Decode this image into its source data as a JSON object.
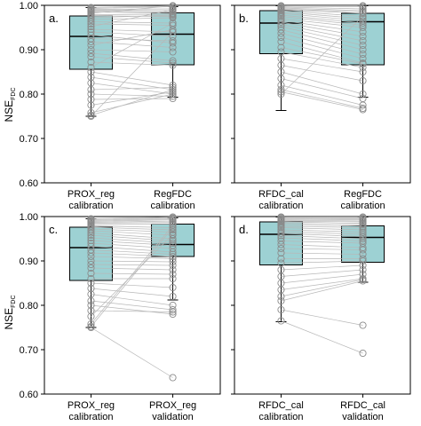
{
  "figure": {
    "ylabel_main": "NSE",
    "ylabel_sub": "FDC",
    "box_color": "#9dd1d3",
    "point_color": "#8a8a8a",
    "line_color": "#b8b8b8"
  },
  "chart_data": [
    {
      "type": "box",
      "panel": "a.",
      "ylim": [
        0.6,
        1.0
      ],
      "yticks": [
        "0.60",
        "0.70",
        "0.80",
        "0.90",
        "1.00"
      ],
      "categories": [
        "PROX_reg\ncalibration",
        "RegFDC\ncalibration"
      ],
      "boxes": [
        {
          "whisker_low": 0.75,
          "q1": 0.856,
          "median": 0.93,
          "q3": 0.976,
          "whisker_high": 0.995
        },
        {
          "whisker_low": 0.793,
          "q1": 0.866,
          "median": 0.935,
          "q3": 0.983,
          "whisker_high": 0.997
        }
      ],
      "points": [
        [
          0.995,
          0.999
        ],
        [
          0.993,
          0.997
        ],
        [
          0.991,
          0.992
        ],
        [
          0.989,
          0.988
        ],
        [
          0.987,
          0.985
        ],
        [
          0.985,
          0.982
        ],
        [
          0.982,
          0.999
        ],
        [
          0.979,
          0.98
        ],
        [
          0.976,
          0.975
        ],
        [
          0.972,
          0.978
        ],
        [
          0.968,
          0.972
        ],
        [
          0.963,
          0.96
        ],
        [
          0.958,
          0.955
        ],
        [
          0.952,
          0.99
        ],
        [
          0.946,
          0.94
        ],
        [
          0.94,
          0.93
        ],
        [
          0.933,
          0.915
        ],
        [
          0.925,
          0.92
        ],
        [
          0.918,
          0.905
        ],
        [
          0.91,
          0.945
        ],
        [
          0.9,
          0.895
        ],
        [
          0.892,
          0.875
        ],
        [
          0.884,
          0.87
        ],
        [
          0.872,
          0.865
        ],
        [
          0.86,
          0.96
        ],
        [
          0.85,
          0.82
        ],
        [
          0.838,
          0.81
        ],
        [
          0.825,
          0.8
        ],
        [
          0.81,
          0.815
        ],
        [
          0.8,
          0.795
        ],
        [
          0.788,
          0.79
        ],
        [
          0.775,
          0.805
        ],
        [
          0.758,
          0.8
        ],
        [
          0.752,
          0.81
        ],
        [
          0.75,
          0.94
        ]
      ]
    },
    {
      "type": "box",
      "panel": "b.",
      "ylim": [
        0.6,
        1.0
      ],
      "yticks": [
        "0.60",
        "0.70",
        "0.80",
        "0.90",
        "1.00"
      ],
      "categories": [
        "RFDC_cal\ncalibration",
        "RegFDC\ncalibration"
      ],
      "boxes": [
        {
          "whisker_low": 0.763,
          "q1": 0.891,
          "median": 0.96,
          "q3": 0.988,
          "whisker_high": 0.999
        },
        {
          "whisker_low": 0.793,
          "q1": 0.866,
          "median": 0.963,
          "q3": 0.982,
          "whisker_high": 0.999
        }
      ],
      "points": [
        [
          0.999,
          0.999
        ],
        [
          0.998,
          0.997
        ],
        [
          0.996,
          0.992
        ],
        [
          0.994,
          0.988
        ],
        [
          0.992,
          0.985
        ],
        [
          0.99,
          0.982
        ],
        [
          0.988,
          0.975
        ],
        [
          0.985,
          0.97
        ],
        [
          0.982,
          0.965
        ],
        [
          0.978,
          0.96
        ],
        [
          0.975,
          0.955
        ],
        [
          0.97,
          0.95
        ],
        [
          0.966,
          0.94
        ],
        [
          0.962,
          0.93
        ],
        [
          0.957,
          0.92
        ],
        [
          0.952,
          0.91
        ],
        [
          0.945,
          0.9
        ],
        [
          0.937,
          0.89
        ],
        [
          0.928,
          0.88
        ],
        [
          0.918,
          0.87
        ],
        [
          0.905,
          0.868
        ],
        [
          0.895,
          0.86
        ],
        [
          0.88,
          0.85
        ],
        [
          0.865,
          0.83
        ],
        [
          0.85,
          0.8
        ],
        [
          0.835,
          0.79
        ],
        [
          0.82,
          0.775
        ],
        [
          0.81,
          0.768
        ],
        [
          0.805,
          0.765
        ],
        [
          0.8,
          0.975
        ]
      ]
    },
    {
      "type": "box",
      "panel": "c.",
      "ylim": [
        0.6,
        1.0
      ],
      "yticks": [
        "0.60",
        "0.70",
        "0.80",
        "0.90",
        "1.00"
      ],
      "categories": [
        "PROX_reg\ncalibration",
        "PROX_reg\nvalidation"
      ],
      "boxes": [
        {
          "whisker_low": 0.75,
          "q1": 0.856,
          "median": 0.93,
          "q3": 0.976,
          "whisker_high": 0.995
        },
        {
          "whisker_low": 0.812,
          "q1": 0.91,
          "median": 0.937,
          "q3": 0.983,
          "whisker_high": 0.997
        }
      ],
      "points": [
        [
          0.995,
          0.999
        ],
        [
          0.993,
          0.997
        ],
        [
          0.991,
          0.995
        ],
        [
          0.989,
          0.993
        ],
        [
          0.987,
          0.99
        ],
        [
          0.985,
          0.987
        ],
        [
          0.982,
          0.983
        ],
        [
          0.979,
          0.975
        ],
        [
          0.976,
          0.97
        ],
        [
          0.972,
          0.965
        ],
        [
          0.968,
          0.958
        ],
        [
          0.963,
          0.95
        ],
        [
          0.958,
          0.945
        ],
        [
          0.952,
          0.94
        ],
        [
          0.946,
          0.935
        ],
        [
          0.94,
          0.928
        ],
        [
          0.933,
          0.92
        ],
        [
          0.925,
          0.915
        ],
        [
          0.918,
          0.91
        ],
        [
          0.91,
          0.905
        ],
        [
          0.9,
          0.898
        ],
        [
          0.892,
          0.89
        ],
        [
          0.884,
          0.88
        ],
        [
          0.872,
          0.87
        ],
        [
          0.86,
          0.86
        ],
        [
          0.85,
          0.84
        ],
        [
          0.838,
          0.82
        ],
        [
          0.825,
          0.8
        ],
        [
          0.81,
          0.79
        ],
        [
          0.8,
          0.78
        ],
        [
          0.788,
          0.785
        ],
        [
          0.775,
          0.96
        ],
        [
          0.758,
          0.98
        ],
        [
          0.752,
          0.975
        ],
        [
          0.75,
          0.637
        ]
      ]
    },
    {
      "type": "box",
      "panel": "d.",
      "ylim": [
        0.6,
        1.0
      ],
      "yticks": [
        "0.60",
        "0.70",
        "0.80",
        "0.90",
        "1.00"
      ],
      "categories": [
        "RFDC_cal\ncalibration",
        "RFDC_cal\nvalidation"
      ],
      "boxes": [
        {
          "whisker_low": 0.763,
          "q1": 0.891,
          "median": 0.96,
          "q3": 0.988,
          "whisker_high": 0.999
        },
        {
          "whisker_low": 0.852,
          "q1": 0.897,
          "median": 0.953,
          "q3": 0.979,
          "whisker_high": 0.999
        }
      ],
      "points": [
        [
          0.999,
          0.999
        ],
        [
          0.998,
          0.997
        ],
        [
          0.996,
          0.995
        ],
        [
          0.994,
          0.993
        ],
        [
          0.992,
          0.99
        ],
        [
          0.99,
          0.988
        ],
        [
          0.988,
          0.985
        ],
        [
          0.985,
          0.982
        ],
        [
          0.982,
          0.978
        ],
        [
          0.978,
          0.975
        ],
        [
          0.975,
          0.97
        ],
        [
          0.97,
          0.965
        ],
        [
          0.966,
          0.96
        ],
        [
          0.962,
          0.955
        ],
        [
          0.957,
          0.95
        ],
        [
          0.952,
          0.945
        ],
        [
          0.945,
          0.94
        ],
        [
          0.937,
          0.93
        ],
        [
          0.928,
          0.925
        ],
        [
          0.918,
          0.915
        ],
        [
          0.905,
          0.905
        ],
        [
          0.895,
          0.9
        ],
        [
          0.88,
          0.89
        ],
        [
          0.865,
          0.88
        ],
        [
          0.85,
          0.87
        ],
        [
          0.835,
          0.86
        ],
        [
          0.82,
          0.858
        ],
        [
          0.81,
          0.855
        ],
        [
          0.79,
          0.755
        ],
        [
          0.765,
          0.692
        ]
      ]
    }
  ]
}
